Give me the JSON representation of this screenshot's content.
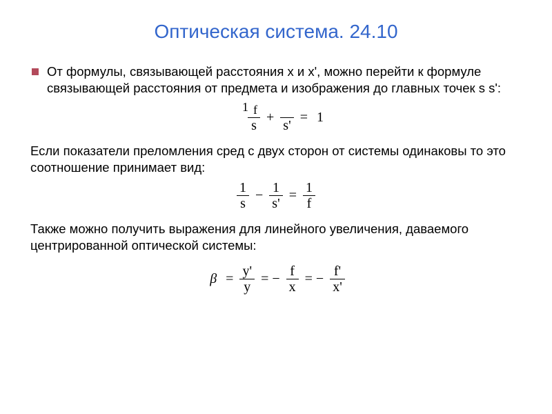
{
  "title": {
    "text": "Оптическая система. 24.10",
    "color": "#3366cc",
    "fontsize": 28
  },
  "bullet_color": "#b34a5b",
  "body_fontsize": 18.5,
  "formula_fontsize": 20,
  "paragraphs": {
    "p1": "От формулы, связывающей расстояния x и x', можно перейти к формуле связывающей расстояния от предмета и изображения до главных точек s s':",
    "p2": "Если показатели преломления сред с двух сторон от системы одинаковы то это соотношение принимает вид:",
    "p3": "Также можно получить выражения для линейного увеличения, даваемого центрированной оптической системы:"
  },
  "formulas": {
    "f1": {
      "term1_num_a": "1",
      "term1_num_b": "f",
      "term1_den": "s",
      "plus": "+",
      "term2_den": "s'",
      "eq": "=",
      "rhs": "1"
    },
    "f2": {
      "t1_num": "1",
      "t1_den": "s",
      "minus": "−",
      "t2_num": "1",
      "t2_den": "s'",
      "eq": "=",
      "t3_num": "1",
      "t3_den": "f"
    },
    "f3": {
      "beta": "β",
      "eq": "=",
      "t1_num": "y'",
      "t1_den": "y",
      "eq2": "= −",
      "t2_num": "f",
      "t2_den": "x",
      "eq3": "= −",
      "t3_num": "f'",
      "t3_den": "x'"
    }
  }
}
